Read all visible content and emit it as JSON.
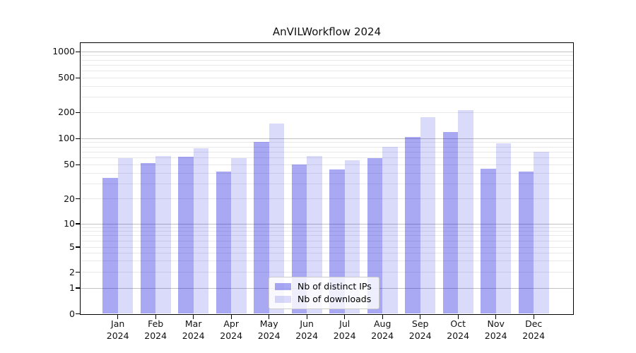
{
  "title": "AnVILWorkflow 2024",
  "y_axis": {
    "ticks": [
      {
        "label": "0",
        "value": 0
      },
      {
        "label": "1",
        "value": 1
      },
      {
        "label": "2",
        "value": 2
      },
      {
        "label": "5",
        "value": 5
      },
      {
        "label": "10",
        "value": 10
      },
      {
        "label": "20",
        "value": 20
      },
      {
        "label": "50",
        "value": 50
      },
      {
        "label": "100",
        "value": 100
      },
      {
        "label": "200",
        "value": 200
      },
      {
        "label": "500",
        "value": 500
      },
      {
        "label": "1000",
        "value": 1000
      }
    ]
  },
  "x_axis": {
    "ticks": [
      {
        "month": "Jan",
        "year": "2024"
      },
      {
        "month": "Feb",
        "year": "2024"
      },
      {
        "month": "Mar",
        "year": "2024"
      },
      {
        "month": "Apr",
        "year": "2024"
      },
      {
        "month": "May",
        "year": "2024"
      },
      {
        "month": "Jun",
        "year": "2024"
      },
      {
        "month": "Jul",
        "year": "2024"
      },
      {
        "month": "Aug",
        "year": "2024"
      },
      {
        "month": "Sep",
        "year": "2024"
      },
      {
        "month": "Oct",
        "year": "2024"
      },
      {
        "month": "Nov",
        "year": "2024"
      },
      {
        "month": "Dec",
        "year": "2024"
      }
    ]
  },
  "legend": {
    "items": [
      {
        "label": "Nb of distinct IPs",
        "color": "rgba(10,10,220,0.35)"
      },
      {
        "label": "Nb of downloads",
        "color": "rgba(10,10,220,0.15)"
      }
    ]
  },
  "colors": {
    "bar_distinct_ips": "rgba(10,10,220,0.35)",
    "bar_downloads": "rgba(10,10,220,0.15)",
    "grid_major": "#c2c2c2",
    "grid_minor": "#e9e9e9",
    "spine": "#000000"
  },
  "chart_data": {
    "type": "bar",
    "title": "AnVILWorkflow 2024",
    "categories": [
      "Jan 2024",
      "Feb 2024",
      "Mar 2024",
      "Apr 2024",
      "May 2024",
      "Jun 2024",
      "Jul 2024",
      "Aug 2024",
      "Sep 2024",
      "Oct 2024",
      "Nov 2024",
      "Dec 2024"
    ],
    "series": [
      {
        "name": "Nb of distinct IPs",
        "values": [
          35,
          52,
          62,
          42,
          92,
          50,
          44,
          60,
          105,
          118,
          45,
          42
        ]
      },
      {
        "name": "Nb of downloads",
        "values": [
          60,
          63,
          78,
          60,
          150,
          63,
          56,
          80,
          178,
          212,
          88,
          71
        ]
      }
    ],
    "yscale": "symlog (log above 1, linear 0-1)",
    "y_ticks": [
      0,
      1,
      2,
      5,
      10,
      20,
      50,
      100,
      200,
      500,
      1000
    ],
    "ylim": [
      0,
      1300
    ],
    "xlabel": "",
    "ylabel": "",
    "grid": true,
    "legend_position": "lower center"
  }
}
